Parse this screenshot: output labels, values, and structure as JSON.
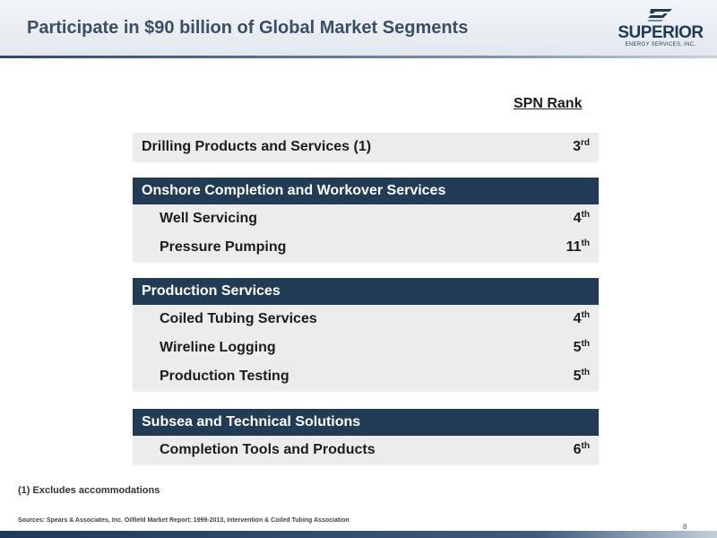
{
  "title": "Participate in $90 billion of Global Market Segments",
  "logo": {
    "name": "SUPERIOR",
    "subtitle": "ENERGY SERVICES, INC.",
    "primary_color": "#1f3a56",
    "icon": "superior-s-icon"
  },
  "rank_header": "SPN Rank",
  "segments": [
    {
      "items": [
        {
          "label": "Drilling Products and Services (1)",
          "rank_num": "3",
          "rank_suffix": "rd"
        }
      ]
    },
    {
      "category": "Onshore Completion and Workover Services",
      "items": [
        {
          "label": "Well Servicing",
          "rank_num": "4",
          "rank_suffix": "th"
        },
        {
          "label": "Pressure Pumping",
          "rank_num": "11",
          "rank_suffix": "th"
        }
      ]
    },
    {
      "category": "Production Services",
      "items": [
        {
          "label": "Coiled Tubing Services",
          "rank_num": "4",
          "rank_suffix": "th"
        },
        {
          "label": "Wireline Logging",
          "rank_num": "5",
          "rank_suffix": "th"
        },
        {
          "label": "Production Testing",
          "rank_num": "5",
          "rank_suffix": "th"
        }
      ]
    },
    {
      "category": "Subsea and Technical Solutions",
      "items": [
        {
          "label": "Completion Tools and Products",
          "rank_num": "6",
          "rank_suffix": "th"
        }
      ]
    }
  ],
  "footnote": "(1) Excludes accommodations",
  "sources": "Sources: Spears & Associates, Inc. Oilfield Market Report: 1999-2013, Intervention & Coiled Tubing Association",
  "page_number": "8",
  "colors": {
    "category_bar": "#223c56",
    "box_background": "#ececed",
    "title": "#3a4f63"
  }
}
